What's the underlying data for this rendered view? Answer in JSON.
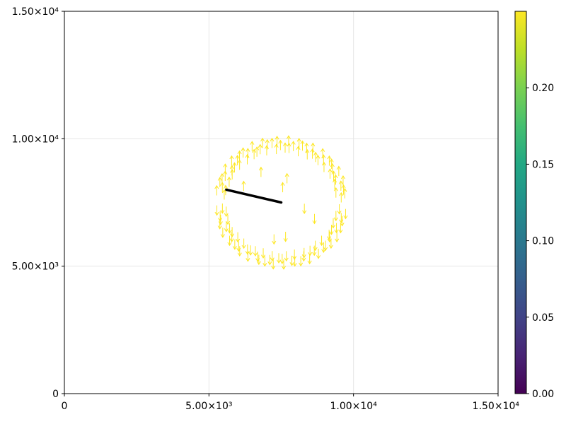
{
  "chart_data": {
    "type": "scatter",
    "subtype": "quiver",
    "title": "",
    "xlabel": "",
    "ylabel": "",
    "xlim": [
      0,
      15000
    ],
    "ylim": [
      0,
      15000
    ],
    "grid": true,
    "x_ticks": [
      0,
      5000,
      10000,
      15000
    ],
    "y_ticks": [
      0,
      5000,
      10000,
      15000
    ],
    "x_tick_labels": [
      "0",
      "5.00×10³",
      "1.00×10⁴",
      "1.50×10⁴"
    ],
    "y_tick_labels": [
      "0",
      "5.00×10³",
      "1.00×10⁴",
      "1.50×10⁴"
    ],
    "arrow_color": "#fde725",
    "arrow_ring": {
      "center": [
        7500,
        7500
      ],
      "radius_min": 1900,
      "radius_max": 2250,
      "count": 120,
      "arrow_length": 380,
      "direction_rule": "vertical, pointing away from the horizontal centerline y = 7500",
      "extra_points": [
        [
          8650,
          7050
        ],
        [
          8300,
          7450
        ],
        [
          7550,
          7900
        ],
        [
          7700,
          8250
        ],
        [
          6800,
          8500
        ],
        [
          6200,
          7950
        ],
        [
          7650,
          6350
        ],
        [
          7250,
          6250
        ]
      ]
    },
    "line_segment": {
      "color": "#000000",
      "points": [
        [
          5600,
          8000
        ],
        [
          7500,
          7500
        ]
      ]
    },
    "colorbar": {
      "range": [
        0,
        0.25
      ],
      "ticks": [
        0.0,
        0.05,
        0.1,
        0.15,
        0.2
      ],
      "tick_labels": [
        "0.00",
        "0.05",
        "0.10",
        "0.15",
        "0.20"
      ],
      "colormap": [
        "#440154",
        "#482475",
        "#414487",
        "#355f8d",
        "#2a788e",
        "#21918c",
        "#22a884",
        "#44bf70",
        "#7ad151",
        "#bddf26",
        "#fde725"
      ]
    }
  }
}
